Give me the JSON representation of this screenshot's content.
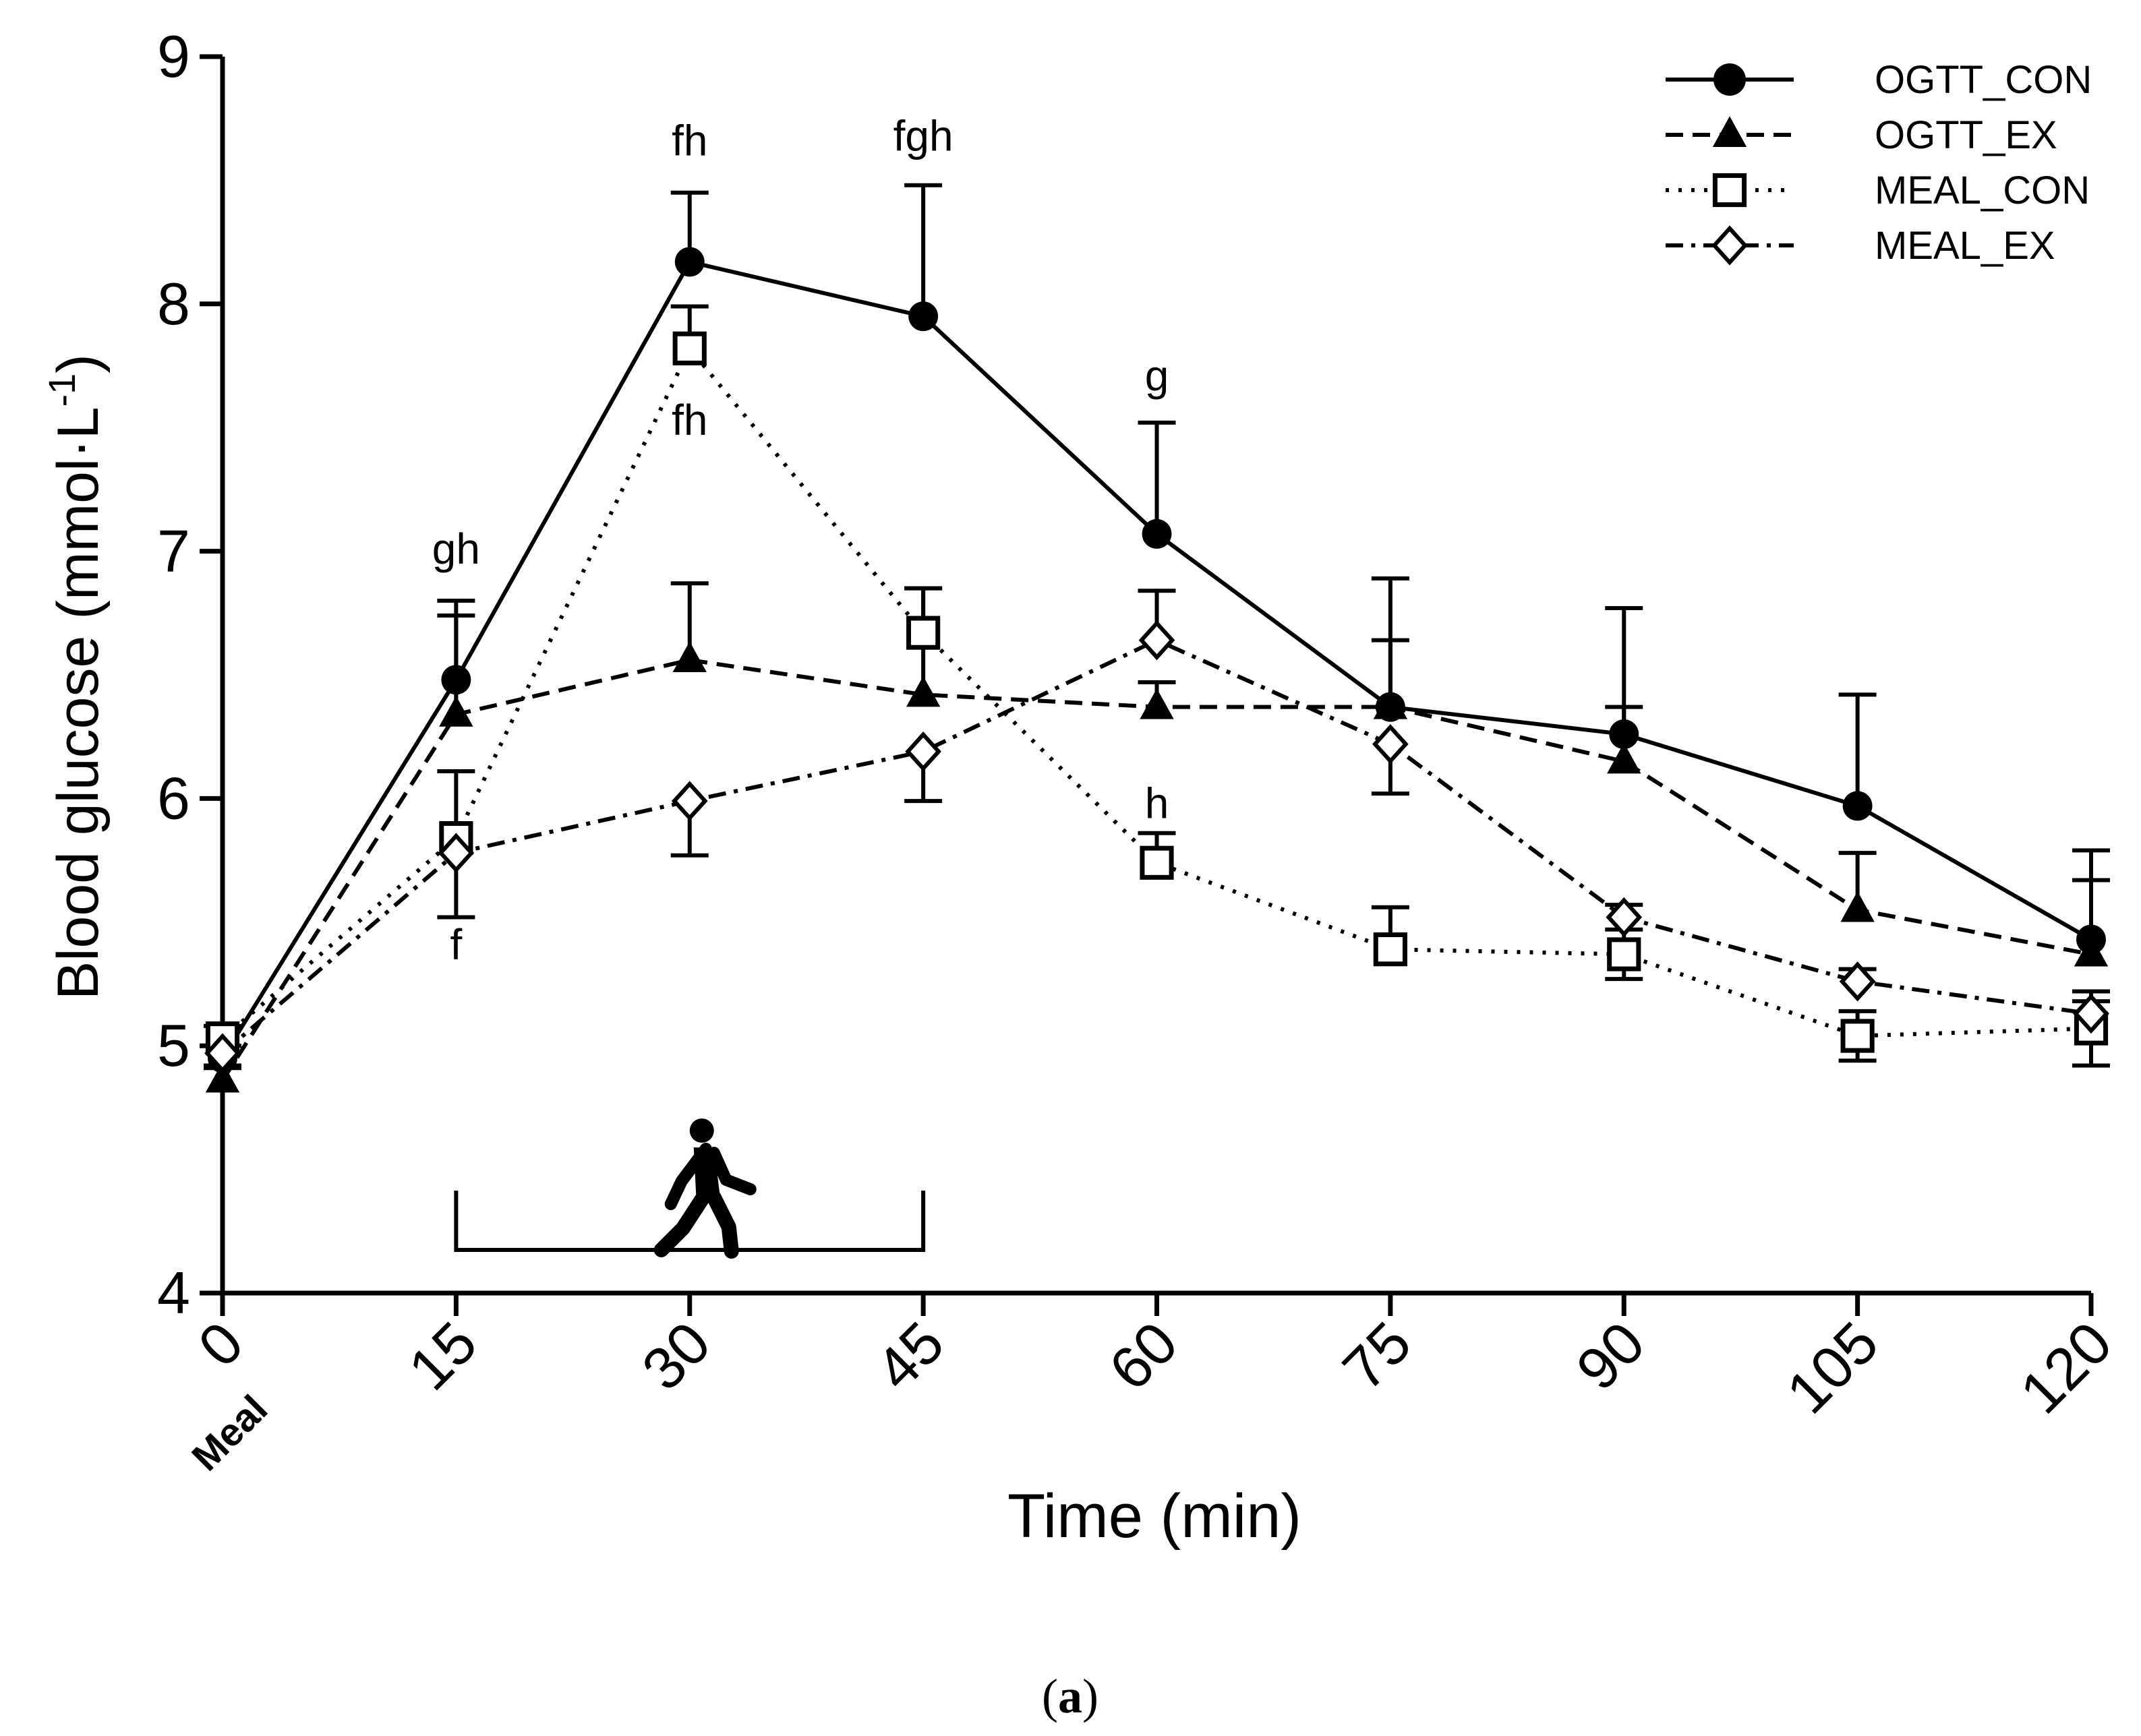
{
  "chart_data": {
    "type": "line",
    "title": "",
    "xlabel": "Time (min)",
    "ylabel": "Blood glucose (mmol·L",
    "ylabel_sup": "-1",
    "ylabel_close": ")",
    "xlim": [
      0,
      120
    ],
    "ylim": [
      4,
      9
    ],
    "x": [
      0,
      15,
      30,
      45,
      60,
      75,
      90,
      105,
      120
    ],
    "x_tick_labels": [
      "0",
      "15",
      "30",
      "45",
      "60",
      "75",
      "90",
      "105",
      "120"
    ],
    "x_sub_label": "Meal",
    "y_ticks": [
      4,
      5,
      6,
      7,
      8,
      9
    ],
    "y_tick_labels": [
      "4",
      "5",
      "6",
      "7",
      "8",
      "9"
    ],
    "legend_position": "top-right",
    "series": [
      {
        "name": "OGTT_CON",
        "marker": "circle",
        "line_style": "solid",
        "values": [
          4.95,
          6.48,
          8.17,
          7.95,
          7.07,
          6.37,
          6.26,
          5.97,
          5.43
        ],
        "errors": [
          0.05,
          0.32,
          0.28,
          0.53,
          0.45,
          0.52,
          0.51,
          0.45,
          0.36
        ],
        "error_dir": [
          "up",
          "up",
          "up",
          "up",
          "up",
          "up",
          "up",
          "up",
          "up"
        ]
      },
      {
        "name": "OGTT_EX",
        "marker": "triangle",
        "line_style": "dashed",
        "values": [
          4.86,
          6.34,
          6.56,
          6.42,
          6.37,
          6.37,
          6.15,
          5.55,
          5.37
        ],
        "errors": [
          0.05,
          0.4,
          0.31,
          0.43,
          0.1,
          0.27,
          0.22,
          0.23,
          0.3
        ],
        "error_dir": [
          "up",
          "up",
          "up",
          "up",
          "up",
          "up",
          "up",
          "up",
          "up"
        ]
      },
      {
        "name": "MEAL_CON",
        "marker": "square",
        "line_style": "dotted",
        "values": [
          5.03,
          5.84,
          7.82,
          6.67,
          5.74,
          5.39,
          5.37,
          5.04,
          5.07
        ],
        "errors": [
          0.05,
          0.27,
          0.17,
          0.18,
          0.12,
          0.17,
          0.1,
          0.1,
          0.15
        ],
        "error_dir": [
          "up",
          "up",
          "up",
          "up",
          "up",
          "up",
          "both",
          "both",
          "both"
        ]
      },
      {
        "name": "MEAL_EX",
        "marker": "diamond",
        "line_style": "dashdot",
        "values": [
          4.97,
          5.78,
          5.99,
          6.19,
          6.64,
          6.22,
          5.52,
          5.26,
          5.13
        ],
        "errors": [
          0.05,
          0.26,
          0.22,
          0.2,
          0.2,
          0.2,
          0.05,
          0.05,
          0.05
        ],
        "error_dir": [
          "down",
          "down",
          "down",
          "down",
          "up",
          "down",
          "up",
          "up",
          "up"
        ]
      }
    ],
    "annotations": [
      {
        "text": "gh",
        "x": 15,
        "y": 6.95
      },
      {
        "text": "fh",
        "x": 30,
        "y": 8.6
      },
      {
        "text": "fgh",
        "x": 45,
        "y": 8.62
      },
      {
        "text": "fh",
        "x": 30,
        "y": 7.47
      },
      {
        "text": "g",
        "x": 60,
        "y": 7.65
      },
      {
        "text": "h",
        "x": 60,
        "y": 5.92
      },
      {
        "text": "f",
        "x": 15,
        "y": 5.35
      }
    ],
    "exercise_period": {
      "start": 15,
      "end": 45,
      "icon": "walking-person-icon"
    }
  },
  "figure": {
    "panel_label": "a"
  }
}
